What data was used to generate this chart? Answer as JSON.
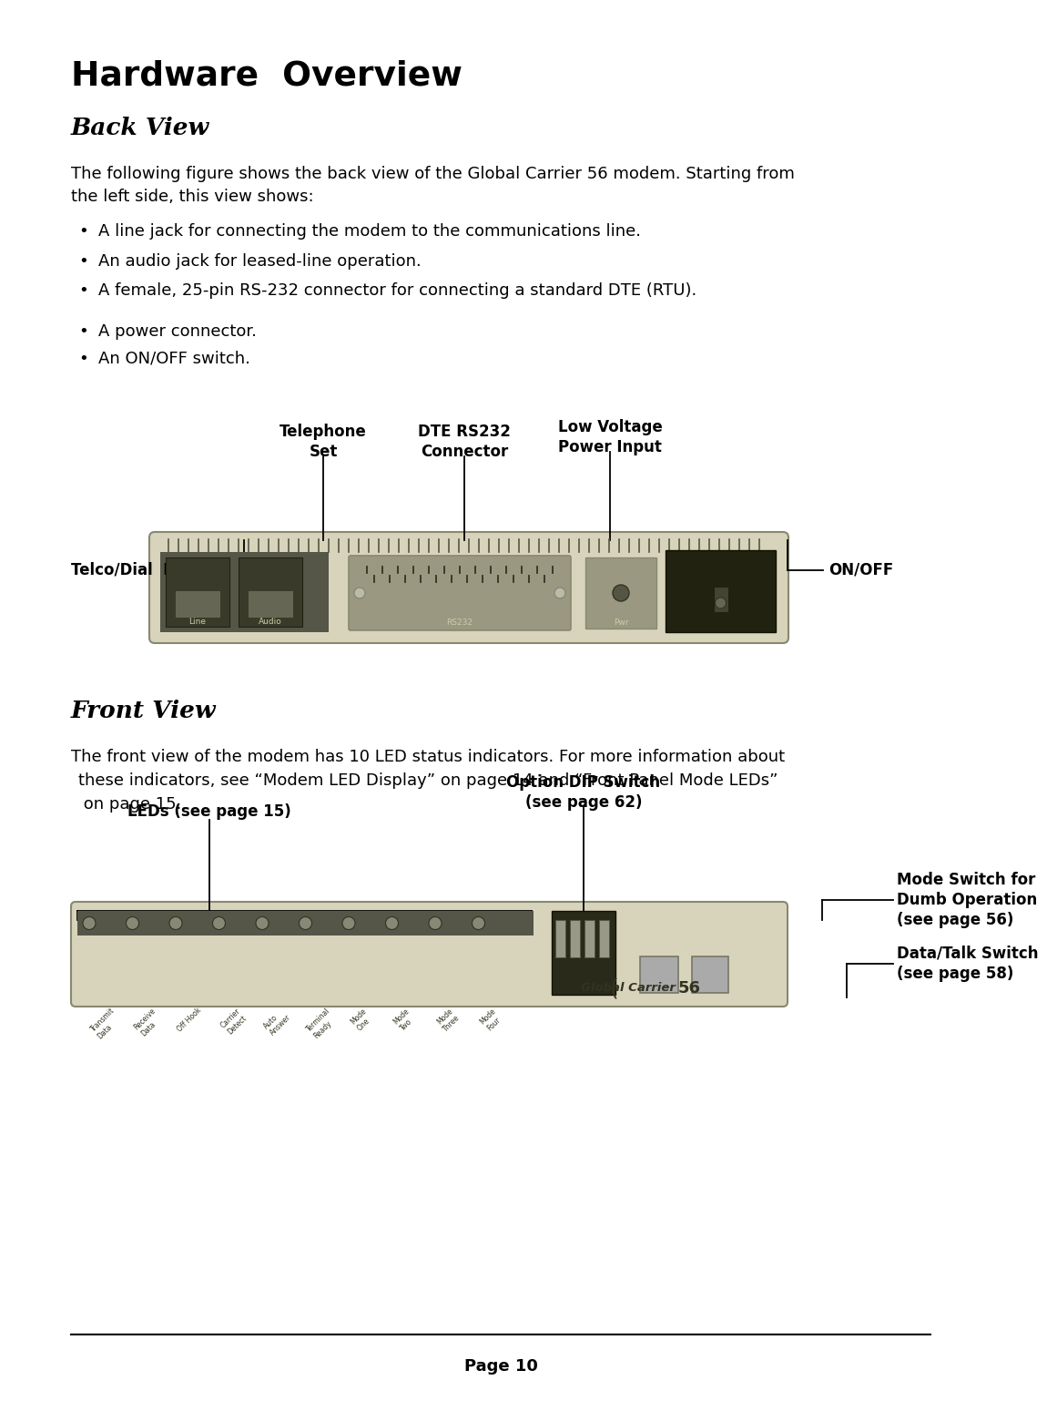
{
  "title": "Hardware  Overview",
  "section1": "Back View",
  "section2": "Front View",
  "bg_color": "#ffffff",
  "text_color": "#000000",
  "page_number": "Page 10",
  "back_view_para1": "The following figure shows the back view of the Global Carrier 56 modem. Starting from",
  "back_view_para2": "the left side, this view shows:",
  "back_bullets": [
    "A line jack for connecting the modem to the communications line.",
    "An audio jack for leased-line operation.",
    "A female, 25-pin RS-232 connector for connecting a standard DTE (RTU).",
    "A power connector.",
    "An ON/OFF switch."
  ],
  "front_view_para1": "The front view of the modem has 10 LED status indicators. For more information about",
  "front_view_para2": "these indicators, see “Modem LED Display” on page 14 and “Front Panel Mode LEDs”",
  "front_view_para3": " on page 15.",
  "back_label_tel": "Telephone\nSet",
  "back_label_dte": "DTE RS232\nConnector",
  "back_label_lv": "Low Voltage\nPower Input",
  "back_label_left": "Telco/Dial  Line",
  "back_label_right": "ON/OFF",
  "front_label_left": "LEDs (see page 15)",
  "front_label_dip": "Option DIP Switch\n(see page 62)",
  "front_label_mode": "Mode Switch for\nDumb Operation\n(see page 56)",
  "front_label_dt": "Data/Talk Switch\n(see page 58)",
  "modem_color": "#d8d4bc",
  "modem_dark": "#b0ac94",
  "modem_darker": "#888870",
  "port_dark": "#3a3a2a"
}
